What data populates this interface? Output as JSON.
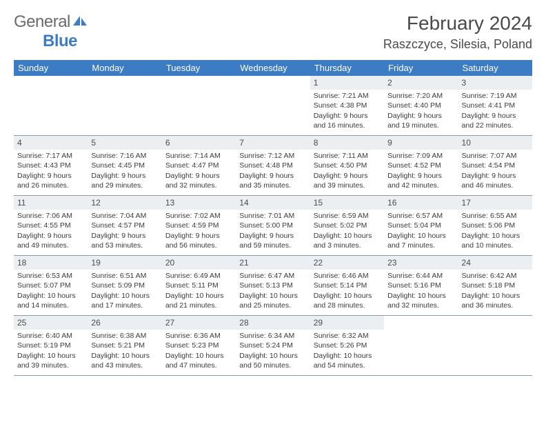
{
  "logo": {
    "text_gray": "General",
    "text_blue": "Blue"
  },
  "header": {
    "month_title": "February 2024",
    "location": "Raszczyce, Silesia, Poland"
  },
  "colors": {
    "header_bg": "#3b7cc4",
    "header_text": "#ffffff",
    "day_number_bg": "#eceff2",
    "body_text": "#3a3a3a"
  },
  "day_names": [
    "Sunday",
    "Monday",
    "Tuesday",
    "Wednesday",
    "Thursday",
    "Friday",
    "Saturday"
  ],
  "weeks": [
    [
      null,
      null,
      null,
      null,
      {
        "n": "1",
        "sr": "7:21 AM",
        "ss": "4:38 PM",
        "dl": "9 hours and 16 minutes."
      },
      {
        "n": "2",
        "sr": "7:20 AM",
        "ss": "4:40 PM",
        "dl": "9 hours and 19 minutes."
      },
      {
        "n": "3",
        "sr": "7:19 AM",
        "ss": "4:41 PM",
        "dl": "9 hours and 22 minutes."
      }
    ],
    [
      {
        "n": "4",
        "sr": "7:17 AM",
        "ss": "4:43 PM",
        "dl": "9 hours and 26 minutes."
      },
      {
        "n": "5",
        "sr": "7:16 AM",
        "ss": "4:45 PM",
        "dl": "9 hours and 29 minutes."
      },
      {
        "n": "6",
        "sr": "7:14 AM",
        "ss": "4:47 PM",
        "dl": "9 hours and 32 minutes."
      },
      {
        "n": "7",
        "sr": "7:12 AM",
        "ss": "4:48 PM",
        "dl": "9 hours and 35 minutes."
      },
      {
        "n": "8",
        "sr": "7:11 AM",
        "ss": "4:50 PM",
        "dl": "9 hours and 39 minutes."
      },
      {
        "n": "9",
        "sr": "7:09 AM",
        "ss": "4:52 PM",
        "dl": "9 hours and 42 minutes."
      },
      {
        "n": "10",
        "sr": "7:07 AM",
        "ss": "4:54 PM",
        "dl": "9 hours and 46 minutes."
      }
    ],
    [
      {
        "n": "11",
        "sr": "7:06 AM",
        "ss": "4:55 PM",
        "dl": "9 hours and 49 minutes."
      },
      {
        "n": "12",
        "sr": "7:04 AM",
        "ss": "4:57 PM",
        "dl": "9 hours and 53 minutes."
      },
      {
        "n": "13",
        "sr": "7:02 AM",
        "ss": "4:59 PM",
        "dl": "9 hours and 56 minutes."
      },
      {
        "n": "14",
        "sr": "7:01 AM",
        "ss": "5:00 PM",
        "dl": "9 hours and 59 minutes."
      },
      {
        "n": "15",
        "sr": "6:59 AM",
        "ss": "5:02 PM",
        "dl": "10 hours and 3 minutes."
      },
      {
        "n": "16",
        "sr": "6:57 AM",
        "ss": "5:04 PM",
        "dl": "10 hours and 7 minutes."
      },
      {
        "n": "17",
        "sr": "6:55 AM",
        "ss": "5:06 PM",
        "dl": "10 hours and 10 minutes."
      }
    ],
    [
      {
        "n": "18",
        "sr": "6:53 AM",
        "ss": "5:07 PM",
        "dl": "10 hours and 14 minutes."
      },
      {
        "n": "19",
        "sr": "6:51 AM",
        "ss": "5:09 PM",
        "dl": "10 hours and 17 minutes."
      },
      {
        "n": "20",
        "sr": "6:49 AM",
        "ss": "5:11 PM",
        "dl": "10 hours and 21 minutes."
      },
      {
        "n": "21",
        "sr": "6:47 AM",
        "ss": "5:13 PM",
        "dl": "10 hours and 25 minutes."
      },
      {
        "n": "22",
        "sr": "6:46 AM",
        "ss": "5:14 PM",
        "dl": "10 hours and 28 minutes."
      },
      {
        "n": "23",
        "sr": "6:44 AM",
        "ss": "5:16 PM",
        "dl": "10 hours and 32 minutes."
      },
      {
        "n": "24",
        "sr": "6:42 AM",
        "ss": "5:18 PM",
        "dl": "10 hours and 36 minutes."
      }
    ],
    [
      {
        "n": "25",
        "sr": "6:40 AM",
        "ss": "5:19 PM",
        "dl": "10 hours and 39 minutes."
      },
      {
        "n": "26",
        "sr": "6:38 AM",
        "ss": "5:21 PM",
        "dl": "10 hours and 43 minutes."
      },
      {
        "n": "27",
        "sr": "6:36 AM",
        "ss": "5:23 PM",
        "dl": "10 hours and 47 minutes."
      },
      {
        "n": "28",
        "sr": "6:34 AM",
        "ss": "5:24 PM",
        "dl": "10 hours and 50 minutes."
      },
      {
        "n": "29",
        "sr": "6:32 AM",
        "ss": "5:26 PM",
        "dl": "10 hours and 54 minutes."
      },
      null,
      null
    ]
  ],
  "labels": {
    "sunrise": "Sunrise: ",
    "sunset": "Sunset: ",
    "daylight": "Daylight: "
  }
}
